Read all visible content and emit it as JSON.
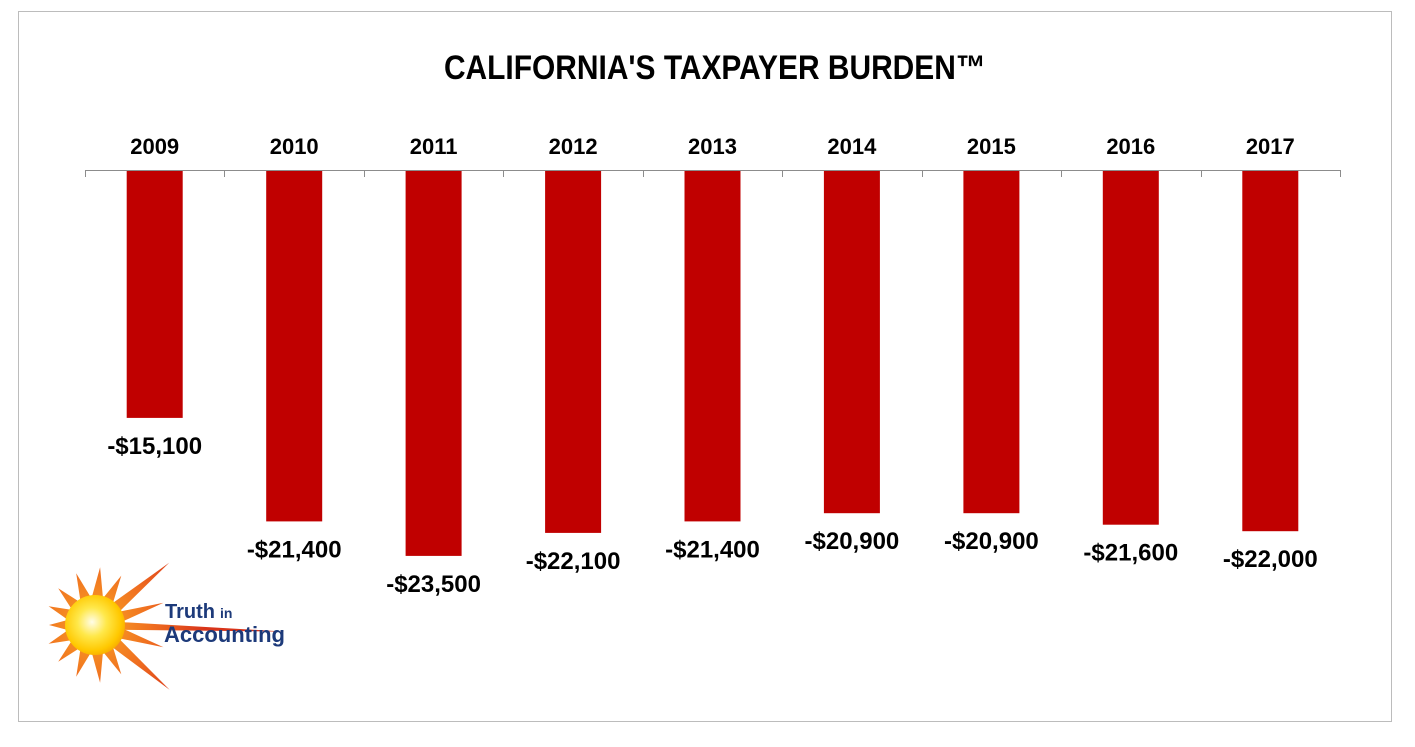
{
  "chart_data": {
    "type": "bar",
    "title": "CALIFORNIA'S TAXPAYER BURDEN™",
    "categories": [
      "2009",
      "2010",
      "2011",
      "2012",
      "2013",
      "2014",
      "2015",
      "2016",
      "2017"
    ],
    "values": [
      -15100,
      -21400,
      -23500,
      -22100,
      -21400,
      -20900,
      -20900,
      -21600,
      -22000
    ],
    "data_labels": [
      "-$15,100",
      "-$21,400",
      "-$23,500",
      "-$22,100",
      "-$21,400",
      "-$20,900",
      "-$20,900",
      "-$21,600",
      "-$22,000"
    ],
    "xlabel": "",
    "ylabel": "",
    "ylim": [
      -25000,
      0
    ],
    "x_axis_position": "top",
    "grid": false,
    "bar_color": "#C00000"
  },
  "logo": {
    "word1": "Truth",
    "word2": "in",
    "word3": "Accounting"
  },
  "colors": {
    "logo_text": "#1D3A7A",
    "axis": "#8C8C8C"
  }
}
